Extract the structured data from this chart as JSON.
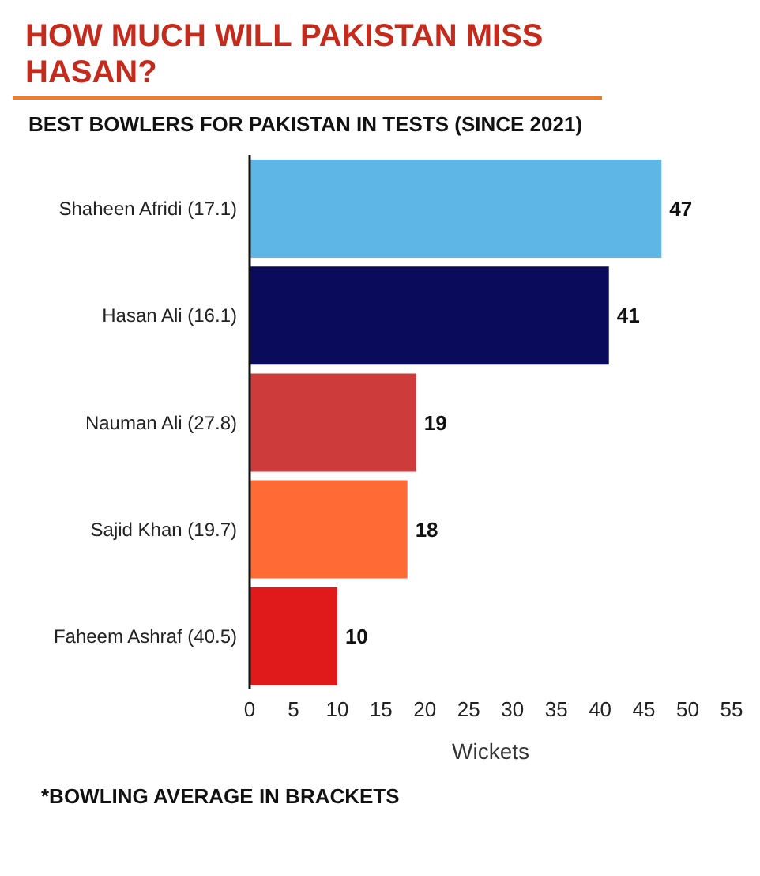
{
  "chart_data": {
    "type": "bar",
    "orientation": "horizontal",
    "title": "HOW MUCH WILL PAKISTAN MISS HASAN?",
    "subtitle": "BEST BOWLERS FOR PAKISTAN IN TESTS (SINCE 2021)",
    "xlabel": "Wickets",
    "categories": [
      "Shaheen Afridi (17.1)",
      "Hasan Ali (16.1)",
      "Nauman Ali (27.8)",
      "Sajid Khan (19.7)",
      "Faheem Ashraf (40.5)"
    ],
    "values": [
      47,
      41,
      19,
      18,
      10
    ],
    "colors": [
      "#5db6e6",
      "#0b0b5c",
      "#cd3b3b",
      "#ff6a35",
      "#e01a1a"
    ],
    "xlim": [
      0,
      55
    ],
    "xticks": [
      0,
      5,
      10,
      15,
      20,
      25,
      30,
      35,
      40,
      45,
      50,
      55
    ],
    "data_labels": true,
    "grid": false,
    "legend": false,
    "annotations": [
      "*BOWLING AVERAGE IN BRACKETS"
    ]
  }
}
